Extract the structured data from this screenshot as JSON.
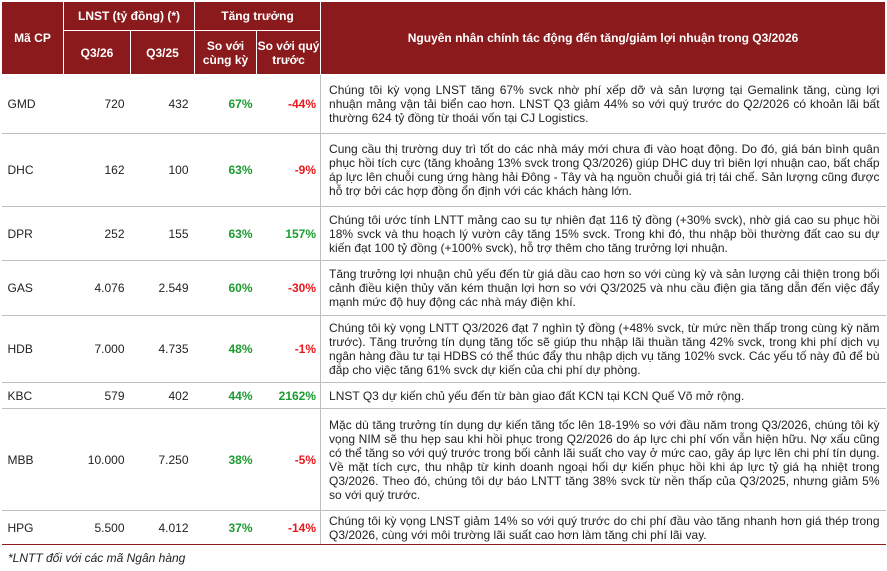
{
  "header": {
    "ma_cp": "Mã CP",
    "lnst": "LNST (tỷ đồng) (*)",
    "growth": "Tăng trưởng",
    "reason": "Nguyên nhân chính tác động đến tăng/giảm lợi nhuận trong Q3/2026",
    "q3_26": "Q3/26",
    "q3_25": "Q3/25",
    "yoy": "So với cùng kỳ",
    "qoq": "So với quý trước"
  },
  "rows": [
    {
      "code": "GMD",
      "q3_26": "720",
      "q3_25": "432",
      "yoy": "67%",
      "qoq": "-44%",
      "qoq_sign": "neg",
      "reason": "Chúng tôi kỳ vọng LNST tăng 67% svck nhờ phí xếp dỡ và sản lượng tại Gemalink tăng, cùng lợi nhuận mảng vận tải biển cao hơn. LNST Q3 giảm 44% so với quý trước do Q2/2026 có khoản lãi bất thường 624 tỷ đồng từ thoái vốn tại CJ Logistics."
    },
    {
      "code": "DHC",
      "q3_26": "162",
      "q3_25": "100",
      "yoy": "63%",
      "qoq": "-9%",
      "qoq_sign": "neg",
      "reason": "Cung cầu thị trường duy trì tốt do các nhà máy mới chưa đi vào hoạt động. Do đó, giá bán bình quân phục hồi tích cực (tăng khoảng 13% svck trong Q3/2026) giúp DHC duy trì biên lợi nhuận cao, bất chấp áp lực lên chuỗi cung ứng hàng hải Đông - Tây và hạ nguồn chuỗi giá trị tái chế. Sản lượng cũng được hỗ trợ bởi các hợp đồng ổn định với các khách hàng lớn."
    },
    {
      "code": "DPR",
      "q3_26": "252",
      "q3_25": "155",
      "yoy": "63%",
      "qoq": "157%",
      "qoq_sign": "pos",
      "reason": "Chúng tôi ước tính LNTT mảng cao su tự nhiên đạt 116 tỷ đồng (+30% svck), nhờ giá cao su phục hồi 18% svck và thu hoạch lý vườn cây tăng 15% svck. Trong khi đó, thu nhập bồi thường đất cao su dự kiến đạt 100 tỷ đồng (+100% svck), hỗ trợ thêm cho tăng trưởng lợi nhuận."
    },
    {
      "code": "GAS",
      "q3_26": "4.076",
      "q3_25": "2.549",
      "yoy": "60%",
      "qoq": "-30%",
      "qoq_sign": "neg",
      "reason": "Tăng trưởng lợi nhuận chủ yếu đến từ giá dầu cao hơn so với cùng kỳ và sản lượng cải thiện trong bối cảnh điều kiện thủy văn kém thuận lợi hơn so với Q3/2025 và nhu cầu điện gia tăng dẫn đến việc đẩy mạnh mức độ huy động các nhà máy điện khí."
    },
    {
      "code": "HDB",
      "q3_26": "7.000",
      "q3_25": "4.735",
      "yoy": "48%",
      "qoq": "-1%",
      "qoq_sign": "neg",
      "reason": "Chúng tôi kỳ vọng LNTT Q3/2026 đạt 7 nghìn tỷ đồng (+48% svck, từ mức nền thấp trong cùng kỳ năm trước). Tăng trưởng tín dụng tăng tốc sẽ giúp thu nhập lãi thuần tăng 42% svck, trong khi phí dịch vụ ngân hàng đầu tư tại HDBS có thể thúc đẩy thu nhập dịch vụ tăng 102% svck. Các yếu tố này đủ để bù đắp cho việc tăng 61% svck dự kiến của chi phí dự phòng."
    },
    {
      "code": "KBC",
      "q3_26": "579",
      "q3_25": "402",
      "yoy": "44%",
      "qoq": "2162%",
      "qoq_sign": "pos",
      "reason": "LNST Q3 dự kiến chủ yếu đến từ bàn giao đất KCN tại KCN Quế Võ mở rộng."
    },
    {
      "code": "MBB",
      "q3_26": "10.000",
      "q3_25": "7.250",
      "yoy": "38%",
      "qoq": "-5%",
      "qoq_sign": "neg",
      "reason": "Mặc dù tăng trưởng tín dụng dự kiến tăng tốc lên 18-19% so với đầu năm trong Q3/2026, chúng tôi kỳ vọng NIM sẽ thu hẹp sau khi hồi phục trong Q2/2026 do áp lực chi phí vốn vẫn hiện hữu. Nợ xấu cũng có thể tăng so với quý trước trong bối cảnh lãi suất cho vay ở mức cao, gây áp lực lên chi phí tín dụng. Về mặt tích cực, thu nhập từ kinh doanh ngoại hối dự kiến phục hồi khi áp lực tỷ giá hạ nhiệt trong Q3/2026. Theo đó, chúng tôi dự báo LNTT tăng 38% svck từ nền thấp của Q3/2025, nhưng giảm 5% so với quý trước."
    },
    {
      "code": "HPG",
      "q3_26": "5.500",
      "q3_25": "4.012",
      "yoy": "37%",
      "qoq": "-14%",
      "qoq_sign": "neg",
      "reason": "Chúng tôi kỳ vọng LNST giảm 14% so với quý trước do chi phí đầu vào tăng nhanh hơn giá thép trong Q3/2026, cùng với môi trường lãi suất cao hơn làm tăng chi phí lãi vay."
    }
  ],
  "footnote": "*LNTT đối với các mã Ngân hàng",
  "colors": {
    "header_bg": "#8b1a1c",
    "positive": "#1a9c2f",
    "negative": "#e8191e"
  }
}
